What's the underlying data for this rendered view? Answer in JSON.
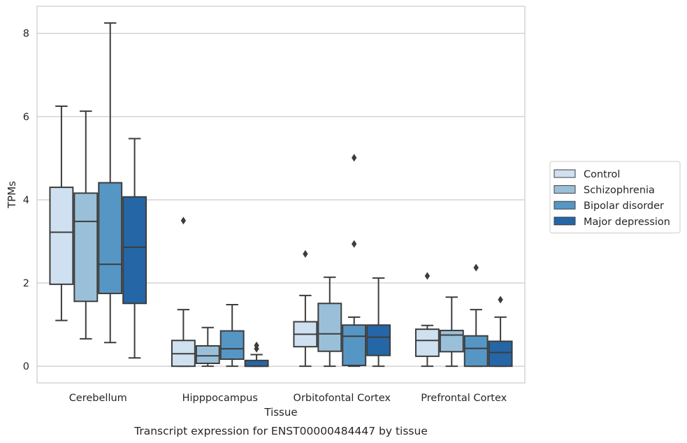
{
  "chart_data": {
    "type": "box",
    "title": "",
    "xlabel": "Tissue",
    "ylabel": "TPMs",
    "caption": "Transcript expression for ENST00000484447 by tissue",
    "categories": [
      "Cerebellum",
      "Hipppocampus",
      "Orbitofontal Cortex",
      "Prefrontal Cortex"
    ],
    "ylim": [
      -0.4,
      8.65
    ],
    "yticks": [
      0,
      2,
      4,
      6,
      8
    ],
    "grid": "horizontal",
    "legend_position": "right",
    "series": [
      {
        "name": "Control",
        "color": "#cfe0f0",
        "boxes": [
          {
            "whisker_low": 1.1,
            "q1": 1.97,
            "median": 3.22,
            "q3": 4.3,
            "whisker_high": 6.25,
            "outliers": []
          },
          {
            "whisker_low": 0.0,
            "q1": 0.0,
            "median": 0.3,
            "q3": 0.62,
            "whisker_high": 1.36,
            "outliers": [
              3.5
            ]
          },
          {
            "whisker_low": 0.0,
            "q1": 0.47,
            "median": 0.77,
            "q3": 1.07,
            "whisker_high": 1.7,
            "outliers": [
              2.7
            ]
          },
          {
            "whisker_low": 0.0,
            "q1": 0.24,
            "median": 0.62,
            "q3": 0.89,
            "whisker_high": 0.98,
            "outliers": [
              2.17
            ]
          }
        ]
      },
      {
        "name": "Schizophrenia",
        "color": "#9ac0d9",
        "boxes": [
          {
            "whisker_low": 0.66,
            "q1": 1.56,
            "median": 3.48,
            "q3": 4.16,
            "whisker_high": 6.13,
            "outliers": []
          },
          {
            "whisker_low": 0.0,
            "q1": 0.07,
            "median": 0.25,
            "q3": 0.49,
            "whisker_high": 0.93,
            "outliers": []
          },
          {
            "whisker_low": 0.0,
            "q1": 0.36,
            "median": 0.78,
            "q3": 1.51,
            "whisker_high": 2.14,
            "outliers": []
          },
          {
            "whisker_low": 0.0,
            "q1": 0.35,
            "median": 0.75,
            "q3": 0.86,
            "whisker_high": 1.66,
            "outliers": []
          }
        ]
      },
      {
        "name": "Bipolar disorder",
        "color": "#5696c4",
        "boxes": [
          {
            "whisker_low": 0.57,
            "q1": 1.75,
            "median": 2.45,
            "q3": 4.41,
            "whisker_high": 8.25,
            "outliers": []
          },
          {
            "whisker_low": 0.0,
            "q1": 0.17,
            "median": 0.42,
            "q3": 0.85,
            "whisker_high": 1.48,
            "outliers": []
          },
          {
            "whisker_low": 0.0,
            "q1": 0.02,
            "median": 0.72,
            "q3": 0.99,
            "whisker_high": 1.18,
            "outliers": [
              2.94,
              5.01
            ]
          },
          {
            "whisker_low": 0.0,
            "q1": 0.0,
            "median": 0.43,
            "q3": 0.73,
            "whisker_high": 1.36,
            "outliers": [
              2.37
            ]
          }
        ]
      },
      {
        "name": "Major depression",
        "color": "#2566a6",
        "boxes": [
          {
            "whisker_low": 0.2,
            "q1": 1.51,
            "median": 2.86,
            "q3": 4.07,
            "whisker_high": 5.47,
            "outliers": []
          },
          {
            "whisker_low": 0.0,
            "q1": 0.0,
            "median": 0.0,
            "q3": 0.14,
            "whisker_high": 0.28,
            "outliers": [
              0.42,
              0.5
            ]
          },
          {
            "whisker_low": 0.0,
            "q1": 0.26,
            "median": 0.7,
            "q3": 0.99,
            "whisker_high": 2.12,
            "outliers": []
          },
          {
            "whisker_low": 0.0,
            "q1": 0.0,
            "median": 0.33,
            "q3": 0.6,
            "whisker_high": 1.18,
            "outliers": [
              1.6
            ]
          }
        ]
      }
    ]
  }
}
